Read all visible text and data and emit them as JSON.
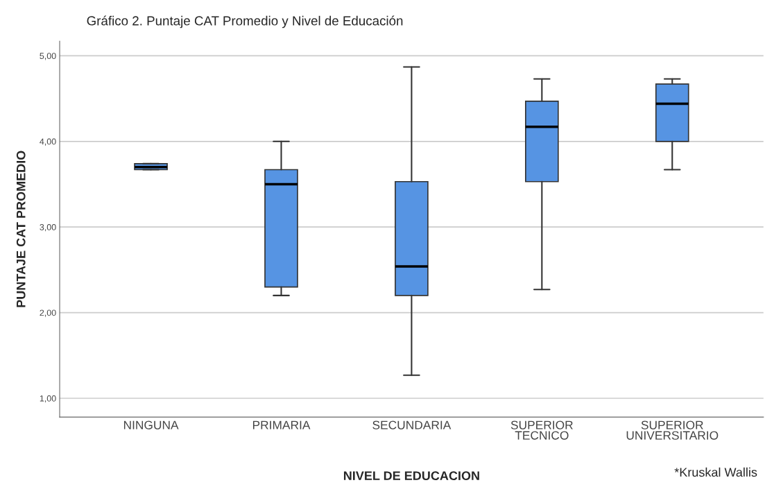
{
  "chart_data": {
    "type": "box",
    "title": "Gráfico 2. Puntaje CAT Promedio y Nivel de Educación",
    "xlabel": "NIVEL DE EDUCACION",
    "ylabel": "PUNTAJE CAT PROMEDIO",
    "categories": [
      "NINGUNA",
      "PRIMARIA",
      "SECUNDARIA",
      "SUPERIOR\nTECNICO",
      "SUPERIOR\nUNIVERSITARIO"
    ],
    "color": "#5694e3",
    "boxes": [
      {
        "low": 3.67,
        "q1": 3.67,
        "median": 3.7,
        "q3": 3.74,
        "high": 3.74
      },
      {
        "low": 2.2,
        "q1": 2.3,
        "median": 3.5,
        "q3": 3.67,
        "high": 4.0
      },
      {
        "low": 1.27,
        "q1": 2.2,
        "median": 2.54,
        "q3": 3.53,
        "high": 4.87
      },
      {
        "low": 2.27,
        "q1": 3.53,
        "median": 4.17,
        "q3": 4.47,
        "high": 4.73
      },
      {
        "low": 3.67,
        "q1": 4.0,
        "median": 4.44,
        "q3": 4.67,
        "high": 4.73
      }
    ],
    "ylim": [
      0.78,
      5.17
    ],
    "yticks": [
      {
        "value": 1,
        "label": "1,00"
      },
      {
        "value": 2,
        "label": "2,00"
      },
      {
        "value": 3,
        "label": "3,00"
      },
      {
        "value": 4,
        "label": "4,00"
      },
      {
        "value": 5,
        "label": "5,00"
      }
    ],
    "grid": "y",
    "annotations": [
      "*Kruskal Wallis"
    ]
  }
}
